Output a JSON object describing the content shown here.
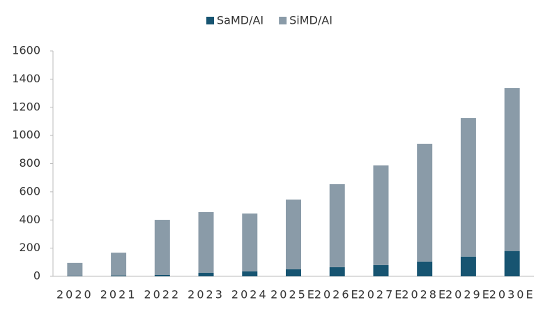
{
  "chart_data": {
    "type": "stacked_bar",
    "categories": [
      "2020",
      "2021",
      "2022",
      "2023",
      "2024",
      "2025E",
      "2026E",
      "2027E",
      "2028E",
      "2029E",
      "2030E"
    ],
    "series": [
      {
        "name": "SaMD/AI",
        "color": "#175471",
        "values": [
          2,
          5,
          10,
          25,
          35,
          50,
          65,
          80,
          105,
          140,
          180
        ]
      },
      {
        "name": "SiMD/AI",
        "color": "#8a9ba8",
        "values": [
          93,
          163,
          391,
          431,
          411,
          495,
          589,
          707,
          836,
          984,
          1157
        ]
      }
    ],
    "ylim": [
      0,
      1600
    ],
    "yticks": [
      0,
      200,
      400,
      600,
      800,
      1000,
      1200,
      1400,
      1600
    ],
    "grid": false,
    "legend": "top"
  }
}
